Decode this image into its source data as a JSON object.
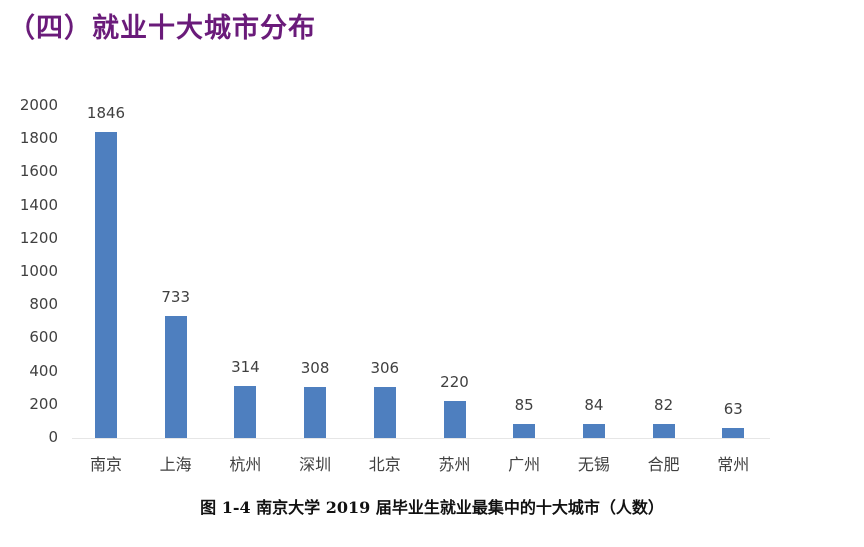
{
  "section_title": "（四）就业十大城市分布",
  "caption": "图 1-4    南京大学 2019 届毕业生就业最集中的十大城市（人数）",
  "colors": {
    "bar": "#4e7fbf",
    "title": "#6a1b7a"
  },
  "chart_data": {
    "type": "bar",
    "title": "图 1-4 南京大学 2019 届毕业生就业最集中的十大城市（人数）",
    "categories": [
      "南京",
      "上海",
      "杭州",
      "深圳",
      "北京",
      "苏州",
      "广州",
      "无锡",
      "合肥",
      "常州"
    ],
    "values": [
      1846,
      733,
      314,
      308,
      306,
      220,
      85,
      84,
      82,
      63
    ],
    "data_labels": [
      "1846",
      "733",
      "314",
      "308",
      "306",
      "220",
      "85",
      "84",
      "82",
      "63"
    ],
    "xlabel": "",
    "ylabel": "",
    "ylim": [
      0,
      2000
    ],
    "yticks": [
      "0",
      "200",
      "400",
      "600",
      "800",
      "1000",
      "1200",
      "1400",
      "1600",
      "1800",
      "2000"
    ],
    "grid": false,
    "legend": "none"
  }
}
